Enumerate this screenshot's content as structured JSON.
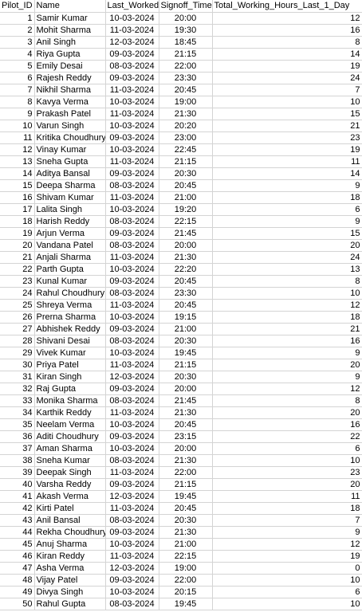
{
  "headers": [
    "Pilot_ID",
    "Name",
    "Last_Worked",
    "Signoff_Time",
    "Total_Working_Hours_Last_1_Day"
  ],
  "rows": [
    [
      "1",
      "Samir Kumar",
      "10-03-2024",
      "20:00",
      "12"
    ],
    [
      "2",
      "Mohit Sharma",
      "11-03-2024",
      "19:30",
      "16"
    ],
    [
      "3",
      "Anil Singh",
      "12-03-2024",
      "18:45",
      "8"
    ],
    [
      "4",
      "Riya Gupta",
      "09-03-2024",
      "21:15",
      "14"
    ],
    [
      "5",
      "Emily Desai",
      "08-03-2024",
      "22:00",
      "19"
    ],
    [
      "6",
      "Rajesh Reddy",
      "09-03-2024",
      "23:30",
      "24"
    ],
    [
      "7",
      "Nikhil Sharma",
      "11-03-2024",
      "20:45",
      "7"
    ],
    [
      "8",
      "Kavya Verma",
      "10-03-2024",
      "19:00",
      "10"
    ],
    [
      "9",
      "Prakash Patel",
      "11-03-2024",
      "21:30",
      "15"
    ],
    [
      "10",
      "Varun Singh",
      "10-03-2024",
      "20:20",
      "21"
    ],
    [
      "11",
      "Kritika Choudhury",
      "09-03-2024",
      "23:00",
      "23"
    ],
    [
      "12",
      "Vinay Kumar",
      "10-03-2024",
      "22:45",
      "19"
    ],
    [
      "13",
      "Sneha Gupta",
      "11-03-2024",
      "21:15",
      "11"
    ],
    [
      "14",
      "Aditya Bansal",
      "09-03-2024",
      "20:30",
      "14"
    ],
    [
      "15",
      "Deepa Sharma",
      "08-03-2024",
      "20:45",
      "9"
    ],
    [
      "16",
      "Shivam Kumar",
      "11-03-2024",
      "21:00",
      "18"
    ],
    [
      "17",
      "Lalita Singh",
      "10-03-2024",
      "19:20",
      "6"
    ],
    [
      "18",
      "Harish Reddy",
      "08-03-2024",
      "22:15",
      "9"
    ],
    [
      "19",
      "Arjun Verma",
      "09-03-2024",
      "21:45",
      "15"
    ],
    [
      "20",
      "Vandana Patel",
      "08-03-2024",
      "20:00",
      "20"
    ],
    [
      "21",
      "Anjali Sharma",
      "11-03-2024",
      "21:30",
      "24"
    ],
    [
      "22",
      "Parth Gupta",
      "10-03-2024",
      "22:20",
      "13"
    ],
    [
      "23",
      "Kunal Kumar",
      "09-03-2024",
      "20:45",
      "8"
    ],
    [
      "24",
      "Rahul Choudhury",
      "08-03-2024",
      "23:30",
      "10"
    ],
    [
      "25",
      "Shreya Verma",
      "11-03-2024",
      "20:45",
      "12"
    ],
    [
      "26",
      "Prerna Sharma",
      "10-03-2024",
      "19:15",
      "18"
    ],
    [
      "27",
      "Abhishek Reddy",
      "09-03-2024",
      "21:00",
      "21"
    ],
    [
      "28",
      "Shivani Desai",
      "08-03-2024",
      "20:30",
      "16"
    ],
    [
      "29",
      "Vivek Kumar",
      "10-03-2024",
      "19:45",
      "9"
    ],
    [
      "30",
      "Priya Patel",
      "11-03-2024",
      "21:15",
      "20"
    ],
    [
      "31",
      "Kiran Singh",
      "12-03-2024",
      "20:30",
      "9"
    ],
    [
      "32",
      "Raj Gupta",
      "09-03-2024",
      "20:00",
      "12"
    ],
    [
      "33",
      "Monika Sharma",
      "08-03-2024",
      "21:45",
      "8"
    ],
    [
      "34",
      "Karthik Reddy",
      "11-03-2024",
      "21:30",
      "20"
    ],
    [
      "35",
      "Neelam Verma",
      "10-03-2024",
      "20:45",
      "16"
    ],
    [
      "36",
      "Aditi Choudhury",
      "09-03-2024",
      "23:15",
      "22"
    ],
    [
      "37",
      "Aman Sharma",
      "10-03-2024",
      "20:00",
      "6"
    ],
    [
      "38",
      "Sneha Kumar",
      "08-03-2024",
      "21:30",
      "10"
    ],
    [
      "39",
      "Deepak Singh",
      "11-03-2024",
      "22:00",
      "23"
    ],
    [
      "40",
      "Varsha Reddy",
      "09-03-2024",
      "21:15",
      "20"
    ],
    [
      "41",
      "Akash Verma",
      "12-03-2024",
      "19:45",
      "11"
    ],
    [
      "42",
      "Kirti Patel",
      "11-03-2024",
      "20:45",
      "18"
    ],
    [
      "43",
      "Anil Bansal",
      "08-03-2024",
      "20:30",
      "7"
    ],
    [
      "44",
      "Rekha Choudhury",
      "09-03-2024",
      "21:30",
      "9"
    ],
    [
      "45",
      "Anuj Sharma",
      "10-03-2024",
      "21:00",
      "12"
    ],
    [
      "46",
      "Kiran Reddy",
      "11-03-2024",
      "22:15",
      "19"
    ],
    [
      "47",
      "Asha Verma",
      "12-03-2024",
      "19:00",
      "0"
    ],
    [
      "48",
      "Vijay Patel",
      "09-03-2024",
      "22:00",
      "10"
    ],
    [
      "49",
      "Divya Singh",
      "10-03-2024",
      "20:15",
      "6"
    ],
    [
      "50",
      "Rahul Gupta",
      "08-03-2024",
      "19:45",
      "10"
    ]
  ]
}
